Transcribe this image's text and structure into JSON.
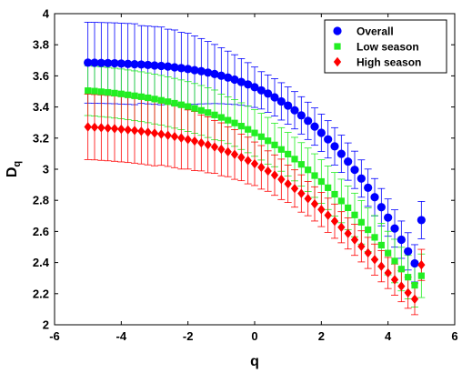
{
  "chart_data": {
    "type": "scatter",
    "xlabel": "q",
    "ylabel": "D",
    "ylabel_sub": "q",
    "xlim": [
      -6,
      6
    ],
    "ylim": [
      2,
      4
    ],
    "xticks": [
      -6,
      -4,
      -2,
      0,
      2,
      4,
      6
    ],
    "yticks": [
      2,
      2.2,
      2.4,
      2.6,
      2.8,
      3,
      3.2,
      3.4,
      3.6,
      3.8,
      4
    ],
    "grid": false,
    "legend_position": "top-right",
    "x": [
      -5.0,
      -4.8,
      -4.6,
      -4.4,
      -4.2,
      -4.0,
      -3.8,
      -3.6,
      -3.4,
      -3.2,
      -3.0,
      -2.8,
      -2.6,
      -2.4,
      -2.2,
      -2.0,
      -1.8,
      -1.6,
      -1.4,
      -1.2,
      -1.0,
      -0.8,
      -0.6,
      -0.4,
      -0.2,
      0.0,
      0.2,
      0.4,
      0.6,
      0.8,
      1.0,
      1.2,
      1.4,
      1.6,
      1.8,
      2.0,
      2.2,
      2.4,
      2.6,
      2.8,
      3.0,
      3.2,
      3.4,
      3.6,
      3.8,
      4.0,
      4.2,
      4.4,
      4.6,
      4.8,
      5.0
    ],
    "series": [
      {
        "name": "Overall",
        "marker": "circle",
        "color": "#0000ff",
        "values": [
          3.685,
          3.684,
          3.683,
          3.682,
          3.681,
          3.679,
          3.677,
          3.675,
          3.673,
          3.67,
          3.667,
          3.664,
          3.66,
          3.655,
          3.65,
          3.644,
          3.637,
          3.63,
          3.621,
          3.612,
          3.601,
          3.589,
          3.576,
          3.561,
          3.545,
          3.527,
          3.507,
          3.486,
          3.462,
          3.436,
          3.409,
          3.379,
          3.346,
          3.311,
          3.274,
          3.234,
          3.192,
          3.147,
          3.099,
          3.049,
          2.996,
          2.94,
          2.881,
          2.82,
          2.756,
          2.689,
          2.619,
          2.547,
          2.472,
          2.395,
          2.673
        ],
        "errors": [
          0.26,
          0.26,
          0.26,
          0.26,
          0.26,
          0.26,
          0.26,
          0.26,
          0.25,
          0.25,
          0.25,
          0.25,
          0.24,
          0.24,
          0.23,
          0.23,
          0.22,
          0.21,
          0.2,
          0.19,
          0.18,
          0.17,
          0.16,
          0.15,
          0.14,
          0.13,
          0.12,
          0.12,
          0.12,
          0.12,
          0.12,
          0.12,
          0.12,
          0.12,
          0.12,
          0.12,
          0.12,
          0.12,
          0.12,
          0.12,
          0.12,
          0.12,
          0.12,
          0.12,
          0.12,
          0.12,
          0.12,
          0.12,
          0.12,
          0.12,
          0.12
        ]
      },
      {
        "name": "Low season",
        "marker": "square",
        "color": "#22ee22",
        "values": [
          3.505,
          3.502,
          3.498,
          3.494,
          3.489,
          3.484,
          3.478,
          3.472,
          3.466,
          3.459,
          3.451,
          3.443,
          3.434,
          3.424,
          3.414,
          3.403,
          3.391,
          3.378,
          3.364,
          3.349,
          3.333,
          3.315,
          3.297,
          3.277,
          3.256,
          3.233,
          3.209,
          3.183,
          3.156,
          3.127,
          3.097,
          3.065,
          3.031,
          2.996,
          2.959,
          2.921,
          2.881,
          2.839,
          2.796,
          2.752,
          2.706,
          2.659,
          2.611,
          2.562,
          2.512,
          2.461,
          2.41,
          2.358,
          2.306,
          2.254,
          2.315
        ],
        "errors": [
          0.16,
          0.16,
          0.16,
          0.16,
          0.16,
          0.16,
          0.16,
          0.16,
          0.16,
          0.16,
          0.16,
          0.16,
          0.16,
          0.16,
          0.16,
          0.16,
          0.16,
          0.16,
          0.16,
          0.16,
          0.15,
          0.15,
          0.15,
          0.15,
          0.15,
          0.15,
          0.15,
          0.15,
          0.14,
          0.14,
          0.14,
          0.14,
          0.14,
          0.14,
          0.14,
          0.14,
          0.14,
          0.14,
          0.14,
          0.14,
          0.14,
          0.14,
          0.14,
          0.14,
          0.14,
          0.14,
          0.14,
          0.14,
          0.14,
          0.14,
          0.14
        ]
      },
      {
        "name": "High season",
        "marker": "diamond",
        "color": "#ff0000",
        "values": [
          3.272,
          3.27,
          3.267,
          3.264,
          3.261,
          3.257,
          3.253,
          3.249,
          3.244,
          3.238,
          3.232,
          3.225,
          3.218,
          3.21,
          3.201,
          3.191,
          3.181,
          3.169,
          3.157,
          3.143,
          3.128,
          3.112,
          3.095,
          3.076,
          3.056,
          3.035,
          3.012,
          2.988,
          2.962,
          2.935,
          2.906,
          2.876,
          2.844,
          2.811,
          2.777,
          2.741,
          2.704,
          2.666,
          2.627,
          2.587,
          2.546,
          2.504,
          2.462,
          2.419,
          2.376,
          2.333,
          2.29,
          2.248,
          2.206,
          2.165,
          2.385
        ],
        "errors": [
          0.21,
          0.21,
          0.21,
          0.21,
          0.21,
          0.21,
          0.21,
          0.21,
          0.21,
          0.21,
          0.21,
          0.2,
          0.2,
          0.2,
          0.2,
          0.19,
          0.19,
          0.18,
          0.18,
          0.17,
          0.17,
          0.16,
          0.16,
          0.15,
          0.15,
          0.14,
          0.14,
          0.13,
          0.13,
          0.13,
          0.12,
          0.12,
          0.12,
          0.11,
          0.11,
          0.11,
          0.11,
          0.11,
          0.1,
          0.1,
          0.1,
          0.1,
          0.1,
          0.1,
          0.1,
          0.1,
          0.1,
          0.1,
          0.1,
          0.1,
          0.1
        ]
      }
    ]
  }
}
